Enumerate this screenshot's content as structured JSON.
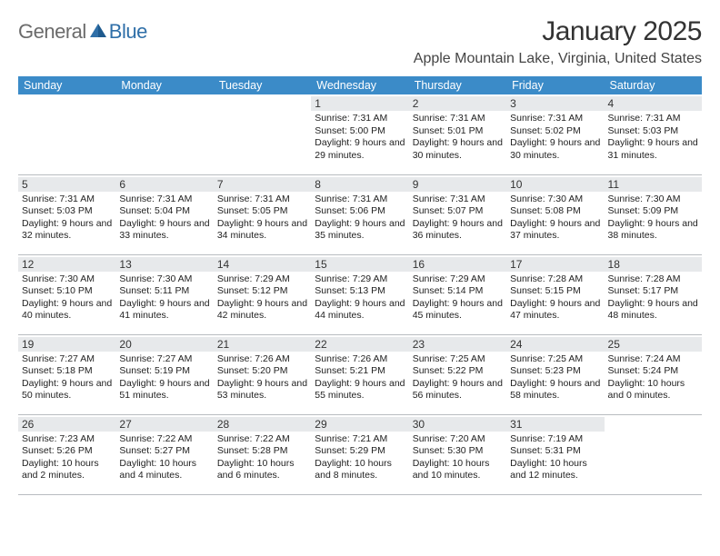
{
  "logo": {
    "part1": "General",
    "part2": "Blue"
  },
  "title": "January 2025",
  "location": "Apple Mountain Lake, Virginia, United States",
  "colors": {
    "header_bg": "#3b8bc8",
    "header_fg": "#ffffff",
    "daynum_bg": "#e7e9eb",
    "row_border": "#b8bcc0",
    "logo_gray": "#6b6b6b",
    "logo_blue": "#2f6fa8"
  },
  "weekdays": [
    "Sunday",
    "Monday",
    "Tuesday",
    "Wednesday",
    "Thursday",
    "Friday",
    "Saturday"
  ],
  "weeks": [
    [
      {
        "n": "",
        "sr": "",
        "ss": "",
        "dl": ""
      },
      {
        "n": "",
        "sr": "",
        "ss": "",
        "dl": ""
      },
      {
        "n": "",
        "sr": "",
        "ss": "",
        "dl": ""
      },
      {
        "n": "1",
        "sr": "Sunrise: 7:31 AM",
        "ss": "Sunset: 5:00 PM",
        "dl": "Daylight: 9 hours and 29 minutes."
      },
      {
        "n": "2",
        "sr": "Sunrise: 7:31 AM",
        "ss": "Sunset: 5:01 PM",
        "dl": "Daylight: 9 hours and 30 minutes."
      },
      {
        "n": "3",
        "sr": "Sunrise: 7:31 AM",
        "ss": "Sunset: 5:02 PM",
        "dl": "Daylight: 9 hours and 30 minutes."
      },
      {
        "n": "4",
        "sr": "Sunrise: 7:31 AM",
        "ss": "Sunset: 5:03 PM",
        "dl": "Daylight: 9 hours and 31 minutes."
      }
    ],
    [
      {
        "n": "5",
        "sr": "Sunrise: 7:31 AM",
        "ss": "Sunset: 5:03 PM",
        "dl": "Daylight: 9 hours and 32 minutes."
      },
      {
        "n": "6",
        "sr": "Sunrise: 7:31 AM",
        "ss": "Sunset: 5:04 PM",
        "dl": "Daylight: 9 hours and 33 minutes."
      },
      {
        "n": "7",
        "sr": "Sunrise: 7:31 AM",
        "ss": "Sunset: 5:05 PM",
        "dl": "Daylight: 9 hours and 34 minutes."
      },
      {
        "n": "8",
        "sr": "Sunrise: 7:31 AM",
        "ss": "Sunset: 5:06 PM",
        "dl": "Daylight: 9 hours and 35 minutes."
      },
      {
        "n": "9",
        "sr": "Sunrise: 7:31 AM",
        "ss": "Sunset: 5:07 PM",
        "dl": "Daylight: 9 hours and 36 minutes."
      },
      {
        "n": "10",
        "sr": "Sunrise: 7:30 AM",
        "ss": "Sunset: 5:08 PM",
        "dl": "Daylight: 9 hours and 37 minutes."
      },
      {
        "n": "11",
        "sr": "Sunrise: 7:30 AM",
        "ss": "Sunset: 5:09 PM",
        "dl": "Daylight: 9 hours and 38 minutes."
      }
    ],
    [
      {
        "n": "12",
        "sr": "Sunrise: 7:30 AM",
        "ss": "Sunset: 5:10 PM",
        "dl": "Daylight: 9 hours and 40 minutes."
      },
      {
        "n": "13",
        "sr": "Sunrise: 7:30 AM",
        "ss": "Sunset: 5:11 PM",
        "dl": "Daylight: 9 hours and 41 minutes."
      },
      {
        "n": "14",
        "sr": "Sunrise: 7:29 AM",
        "ss": "Sunset: 5:12 PM",
        "dl": "Daylight: 9 hours and 42 minutes."
      },
      {
        "n": "15",
        "sr": "Sunrise: 7:29 AM",
        "ss": "Sunset: 5:13 PM",
        "dl": "Daylight: 9 hours and 44 minutes."
      },
      {
        "n": "16",
        "sr": "Sunrise: 7:29 AM",
        "ss": "Sunset: 5:14 PM",
        "dl": "Daylight: 9 hours and 45 minutes."
      },
      {
        "n": "17",
        "sr": "Sunrise: 7:28 AM",
        "ss": "Sunset: 5:15 PM",
        "dl": "Daylight: 9 hours and 47 minutes."
      },
      {
        "n": "18",
        "sr": "Sunrise: 7:28 AM",
        "ss": "Sunset: 5:17 PM",
        "dl": "Daylight: 9 hours and 48 minutes."
      }
    ],
    [
      {
        "n": "19",
        "sr": "Sunrise: 7:27 AM",
        "ss": "Sunset: 5:18 PM",
        "dl": "Daylight: 9 hours and 50 minutes."
      },
      {
        "n": "20",
        "sr": "Sunrise: 7:27 AM",
        "ss": "Sunset: 5:19 PM",
        "dl": "Daylight: 9 hours and 51 minutes."
      },
      {
        "n": "21",
        "sr": "Sunrise: 7:26 AM",
        "ss": "Sunset: 5:20 PM",
        "dl": "Daylight: 9 hours and 53 minutes."
      },
      {
        "n": "22",
        "sr": "Sunrise: 7:26 AM",
        "ss": "Sunset: 5:21 PM",
        "dl": "Daylight: 9 hours and 55 minutes."
      },
      {
        "n": "23",
        "sr": "Sunrise: 7:25 AM",
        "ss": "Sunset: 5:22 PM",
        "dl": "Daylight: 9 hours and 56 minutes."
      },
      {
        "n": "24",
        "sr": "Sunrise: 7:25 AM",
        "ss": "Sunset: 5:23 PM",
        "dl": "Daylight: 9 hours and 58 minutes."
      },
      {
        "n": "25",
        "sr": "Sunrise: 7:24 AM",
        "ss": "Sunset: 5:24 PM",
        "dl": "Daylight: 10 hours and 0 minutes."
      }
    ],
    [
      {
        "n": "26",
        "sr": "Sunrise: 7:23 AM",
        "ss": "Sunset: 5:26 PM",
        "dl": "Daylight: 10 hours and 2 minutes."
      },
      {
        "n": "27",
        "sr": "Sunrise: 7:22 AM",
        "ss": "Sunset: 5:27 PM",
        "dl": "Daylight: 10 hours and 4 minutes."
      },
      {
        "n": "28",
        "sr": "Sunrise: 7:22 AM",
        "ss": "Sunset: 5:28 PM",
        "dl": "Daylight: 10 hours and 6 minutes."
      },
      {
        "n": "29",
        "sr": "Sunrise: 7:21 AM",
        "ss": "Sunset: 5:29 PM",
        "dl": "Daylight: 10 hours and 8 minutes."
      },
      {
        "n": "30",
        "sr": "Sunrise: 7:20 AM",
        "ss": "Sunset: 5:30 PM",
        "dl": "Daylight: 10 hours and 10 minutes."
      },
      {
        "n": "31",
        "sr": "Sunrise: 7:19 AM",
        "ss": "Sunset: 5:31 PM",
        "dl": "Daylight: 10 hours and 12 minutes."
      },
      {
        "n": "",
        "sr": "",
        "ss": "",
        "dl": ""
      }
    ]
  ]
}
